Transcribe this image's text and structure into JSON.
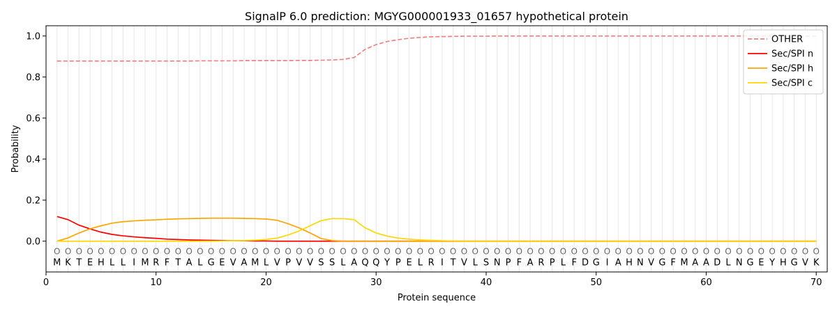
{
  "chart_data": {
    "type": "line",
    "title": "SignalP 6.0 prediction: MGYG000001933_01657 hypothetical protein",
    "xlabel": "Protein sequence",
    "ylabel": "Probability",
    "xlim": [
      0,
      71
    ],
    "ylim": [
      -0.15,
      1.05
    ],
    "x_ticks": [
      0,
      10,
      20,
      30,
      40,
      50,
      60,
      70
    ],
    "y_ticks": [
      0.0,
      0.2,
      0.4,
      0.6,
      0.8,
      1.0
    ],
    "x_tick_labels": [
      "0",
      "10",
      "20",
      "30",
      "40",
      "50",
      "60",
      "70"
    ],
    "y_tick_labels": [
      "0.0",
      "0.2",
      "0.4",
      "0.6",
      "0.8",
      "1.0"
    ],
    "grid": "vertical lines at every residue position",
    "legend_position": "top-right",
    "sequence": [
      "M",
      "K",
      "T",
      "E",
      "H",
      "L",
      "L",
      "I",
      "M",
      "R",
      "F",
      "T",
      "A",
      "L",
      "G",
      "E",
      "V",
      "A",
      "M",
      "L",
      "V",
      "P",
      "V",
      "V",
      "S",
      "S",
      "L",
      "A",
      "Q",
      "Q",
      "Y",
      "P",
      "E",
      "L",
      "R",
      "I",
      "T",
      "V",
      "L",
      "S",
      "N",
      "P",
      "F",
      "A",
      "R",
      "P",
      "L",
      "F",
      "D",
      "G",
      "I",
      "A",
      "H",
      "N",
      "V",
      "G",
      "F",
      "M",
      "A",
      "A",
      "D",
      "L",
      "N",
      "G",
      "E",
      "Y",
      "H",
      "G",
      "V",
      "K"
    ],
    "region_label": "O",
    "series": [
      {
        "name": "OTHER",
        "color": "#f08080",
        "dash": "dashed",
        "values": [
          0.878,
          0.878,
          0.878,
          0.878,
          0.878,
          0.878,
          0.878,
          0.878,
          0.878,
          0.878,
          0.878,
          0.878,
          0.878,
          0.879,
          0.879,
          0.879,
          0.879,
          0.88,
          0.88,
          0.88,
          0.88,
          0.88,
          0.881,
          0.881,
          0.882,
          0.883,
          0.886,
          0.895,
          0.935,
          0.958,
          0.973,
          0.982,
          0.989,
          0.993,
          0.996,
          0.997,
          0.998,
          0.999,
          0.999,
          0.999,
          1.0,
          1.0,
          1.0,
          1.0,
          1.0,
          1.0,
          1.0,
          1.0,
          1.0,
          1.0,
          1.0,
          1.0,
          1.0,
          1.0,
          1.0,
          1.0,
          1.0,
          1.0,
          1.0,
          1.0,
          1.0,
          1.0,
          1.0,
          1.0,
          1.0,
          1.0,
          1.0,
          1.0,
          1.0,
          1.0
        ]
      },
      {
        "name": "Sec/SPI n",
        "color": "#ff0000",
        "dash": "solid",
        "values": [
          0.12,
          0.105,
          0.078,
          0.06,
          0.044,
          0.033,
          0.026,
          0.021,
          0.017,
          0.014,
          0.01,
          0.008,
          0.006,
          0.005,
          0.004,
          0.003,
          0.002,
          0.002,
          0.001,
          0.001,
          0.0,
          0.0,
          0.0,
          0.0,
          0.0,
          0.0,
          0.0,
          0.0,
          0.0,
          0.0,
          0.0,
          0.0,
          0.0,
          0.0,
          0.0,
          0.0,
          0.0,
          0.0,
          0.0,
          0.0,
          0.0,
          0.0,
          0.0,
          0.0,
          0.0,
          0.0,
          0.0,
          0.0,
          0.0,
          0.0,
          0.0,
          0.0,
          0.0,
          0.0,
          0.0,
          0.0,
          0.0,
          0.0,
          0.0,
          0.0,
          0.0,
          0.0,
          0.0,
          0.0,
          0.0,
          0.0,
          0.0,
          0.0,
          0.0,
          0.0
        ]
      },
      {
        "name": "Sec/SPI h",
        "color": "#ffa500",
        "dash": "solid",
        "values": [
          0.0,
          0.016,
          0.04,
          0.06,
          0.075,
          0.088,
          0.095,
          0.099,
          0.102,
          0.104,
          0.107,
          0.109,
          0.11,
          0.111,
          0.112,
          0.112,
          0.112,
          0.111,
          0.11,
          0.108,
          0.102,
          0.085,
          0.065,
          0.04,
          0.013,
          0.003,
          0.0,
          0.0,
          0.0,
          0.0,
          0.0,
          0.0,
          0.0,
          0.0,
          0.0,
          0.0,
          0.0,
          0.0,
          0.0,
          0.0,
          0.0,
          0.0,
          0.0,
          0.0,
          0.0,
          0.0,
          0.0,
          0.0,
          0.0,
          0.0,
          0.0,
          0.0,
          0.0,
          0.0,
          0.0,
          0.0,
          0.0,
          0.0,
          0.0,
          0.0,
          0.0,
          0.0,
          0.0,
          0.0,
          0.0,
          0.0,
          0.0,
          0.0,
          0.0,
          0.0
        ]
      },
      {
        "name": "Sec/SPI c",
        "color": "#ffd700",
        "dash": "solid",
        "values": [
          0.0,
          0.0,
          0.0,
          0.0,
          0.0,
          0.0,
          0.0,
          0.0,
          0.0,
          0.0,
          0.0,
          0.0,
          0.0,
          0.0,
          0.0,
          0.001,
          0.002,
          0.003,
          0.005,
          0.008,
          0.015,
          0.03,
          0.05,
          0.075,
          0.1,
          0.11,
          0.11,
          0.105,
          0.065,
          0.04,
          0.025,
          0.015,
          0.01,
          0.006,
          0.004,
          0.002,
          0.001,
          0.0,
          0.0,
          0.0,
          0.0,
          0.0,
          0.0,
          0.0,
          0.0,
          0.0,
          0.0,
          0.0,
          0.0,
          0.0,
          0.0,
          0.0,
          0.0,
          0.0,
          0.0,
          0.0,
          0.0,
          0.0,
          0.0,
          0.0,
          0.0,
          0.0,
          0.0,
          0.0,
          0.0,
          0.0,
          0.0,
          0.0,
          0.0,
          0.0
        ]
      }
    ]
  }
}
